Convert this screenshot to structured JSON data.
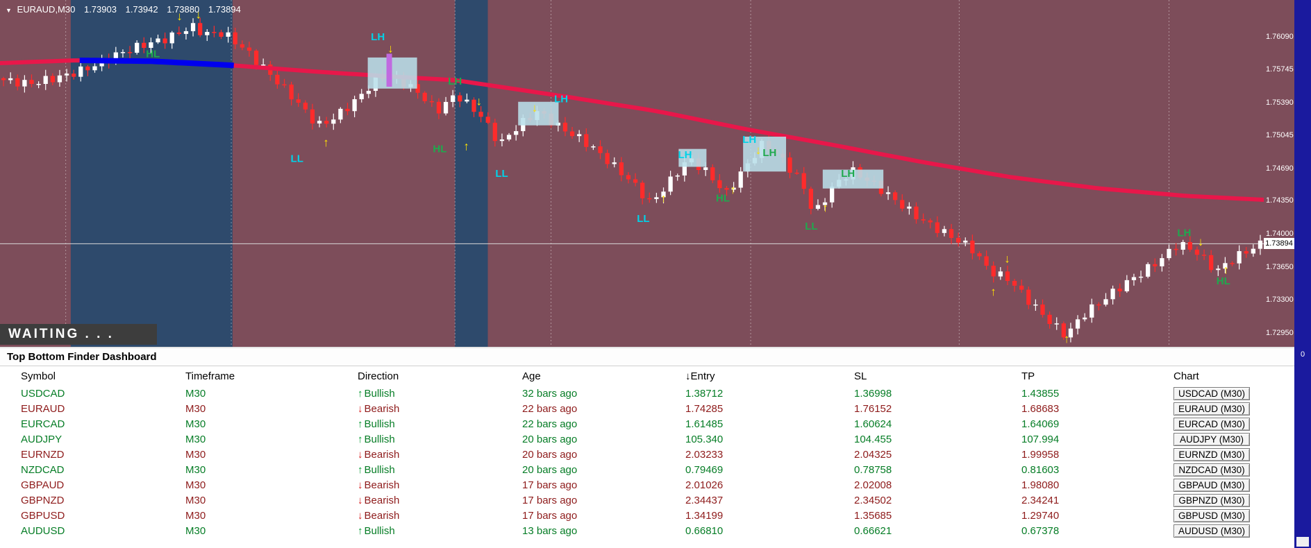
{
  "chart_data": {
    "type": "candlestick",
    "symbol": "EURAUD",
    "timeframe": "M30",
    "ohlc_header": {
      "symbol_period": "EURAUD,M30",
      "open": "1.73903",
      "high": "1.73942",
      "low": "1.73880",
      "close": "1.73894"
    },
    "waiting_text": "WAITING . . .",
    "ylim": [
      1.728,
      1.7648
    ],
    "axis_labels": [
      "1.76090",
      "1.75745",
      "1.75390",
      "1.75045",
      "1.74690",
      "1.74350",
      "1.74000",
      "1.73650",
      "1.73300",
      "1.72950"
    ],
    "current_price": "1.73894",
    "candle_count": 180,
    "price_path": [
      [
        0,
        1.7563
      ],
      [
        0.02,
        1.7559
      ],
      [
        0.05,
        1.7568
      ],
      [
        0.07,
        1.7577
      ],
      [
        0.09,
        1.759
      ],
      [
        0.11,
        1.76
      ],
      [
        0.13,
        1.7607
      ],
      [
        0.15,
        1.762
      ],
      [
        0.16,
        1.7612
      ],
      [
        0.175,
        1.7613
      ],
      [
        0.19,
        1.7598
      ],
      [
        0.21,
        1.7572
      ],
      [
        0.23,
        1.7545
      ],
      [
        0.25,
        1.7515
      ],
      [
        0.26,
        1.752
      ],
      [
        0.28,
        1.7541
      ],
      [
        0.3,
        1.7568
      ],
      [
        0.315,
        1.7563
      ],
      [
        0.33,
        1.755
      ],
      [
        0.345,
        1.753
      ],
      [
        0.36,
        1.7548
      ],
      [
        0.38,
        1.7525
      ],
      [
        0.395,
        1.7495
      ],
      [
        0.41,
        1.7515
      ],
      [
        0.425,
        1.753
      ],
      [
        0.44,
        1.7515
      ],
      [
        0.46,
        1.75
      ],
      [
        0.47,
        1.749
      ],
      [
        0.5,
        1.7455
      ],
      [
        0.515,
        1.7432
      ],
      [
        0.53,
        1.7455
      ],
      [
        0.545,
        1.748
      ],
      [
        0.56,
        1.7465
      ],
      [
        0.575,
        1.7442
      ],
      [
        0.59,
        1.747
      ],
      [
        0.605,
        1.7497
      ],
      [
        0.62,
        1.7478
      ],
      [
        0.635,
        1.7455
      ],
      [
        0.645,
        1.742
      ],
      [
        0.66,
        1.745
      ],
      [
        0.675,
        1.7467
      ],
      [
        0.69,
        1.7455
      ],
      [
        0.71,
        1.7435
      ],
      [
        0.73,
        1.7415
      ],
      [
        0.75,
        1.74
      ],
      [
        0.77,
        1.7385
      ],
      [
        0.785,
        1.736
      ],
      [
        0.8,
        1.7352
      ],
      [
        0.815,
        1.733
      ],
      [
        0.83,
        1.731
      ],
      [
        0.845,
        1.7292
      ],
      [
        0.86,
        1.7315
      ],
      [
        0.875,
        1.733
      ],
      [
        0.89,
        1.7345
      ],
      [
        0.905,
        1.7358
      ],
      [
        0.92,
        1.7372
      ],
      [
        0.935,
        1.739
      ],
      [
        0.95,
        1.738
      ],
      [
        0.965,
        1.736
      ],
      [
        0.98,
        1.7375
      ],
      [
        1,
        1.7389
      ]
    ],
    "ma_path": [
      [
        0,
        1.7581
      ],
      [
        0.06,
        1.7584
      ],
      [
        0.12,
        1.7583
      ],
      [
        0.18,
        1.7579
      ],
      [
        0.25,
        1.7572
      ],
      [
        0.32,
        1.7566
      ],
      [
        0.36,
        1.7563
      ],
      [
        0.45,
        1.7545
      ],
      [
        0.52,
        1.753
      ],
      [
        0.59,
        1.7511
      ],
      [
        0.66,
        1.7494
      ],
      [
        0.73,
        1.7476
      ],
      [
        0.8,
        1.746
      ],
      [
        0.87,
        1.7448
      ],
      [
        0.94,
        1.744
      ],
      [
        1,
        1.7436
      ]
    ],
    "ma_blue_segment": [
      0.063,
      0.185
    ],
    "bands": [
      [
        0.056,
        0.184
      ],
      [
        0.36,
        0.386
      ]
    ],
    "gridlines": [
      0.052,
      0.183,
      0.36,
      0.436,
      0.594,
      0.759,
      0.925
    ],
    "boxes": [
      {
        "f1": 0.291,
        "f2": 0.33,
        "p1": 1.7554,
        "p2": 1.7587
      },
      {
        "f1": 0.41,
        "f2": 0.442,
        "p1": 1.7515,
        "p2": 1.754
      },
      {
        "f1": 0.537,
        "f2": 0.559,
        "p1": 1.7471,
        "p2": 1.749
      },
      {
        "f1": 0.588,
        "f2": 0.622,
        "p1": 1.7466,
        "p2": 1.7503
      },
      {
        "f1": 0.651,
        "f2": 0.699,
        "p1": 1.7448,
        "p2": 1.7468
      }
    ],
    "violet_candle": {
      "f": 0.308,
      "p1": 1.7556,
      "p2": 1.7591
    },
    "labels": [
      {
        "f": 0.121,
        "p": 1.7591,
        "t": "HL",
        "c": "green"
      },
      {
        "f": 0.299,
        "p": 1.7609,
        "t": "LH",
        "c": "cyan"
      },
      {
        "f": 0.235,
        "p": 1.748,
        "t": "LL",
        "c": "cyan"
      },
      {
        "f": 0.348,
        "p": 1.749,
        "t": "HL",
        "c": "green"
      },
      {
        "f": 0.36,
        "p": 1.7562,
        "t": "LH",
        "c": "green"
      },
      {
        "f": 0.397,
        "p": 1.7464,
        "t": "LL",
        "c": "cyan"
      },
      {
        "f": 0.444,
        "p": 1.7543,
        "t": "LH",
        "c": "cyan"
      },
      {
        "f": 0.509,
        "p": 1.7416,
        "t": "LL",
        "c": "cyan"
      },
      {
        "f": 0.542,
        "p": 1.7484,
        "t": "LH",
        "c": "cyan"
      },
      {
        "f": 0.572,
        "p": 1.7438,
        "t": "HL",
        "c": "green"
      },
      {
        "f": 0.593,
        "p": 1.75,
        "t": "LH",
        "c": "cyan"
      },
      {
        "f": 0.609,
        "p": 1.7486,
        "t": "LH",
        "c": "green"
      },
      {
        "f": 0.642,
        "p": 1.7408,
        "t": "LL",
        "c": "green"
      },
      {
        "f": 0.671,
        "p": 1.7464,
        "t": "LH",
        "c": "green"
      },
      {
        "f": 0.937,
        "p": 1.7401,
        "t": "LH",
        "c": "green"
      },
      {
        "f": 0.968,
        "p": 1.735,
        "t": "HL",
        "c": "green"
      }
    ],
    "arrows": [
      {
        "f": 0.142,
        "p": 1.7631,
        "d": "down"
      },
      {
        "f": 0.157,
        "p": 1.7633,
        "d": "down"
      },
      {
        "f": 0.258,
        "p": 1.7497,
        "d": "up"
      },
      {
        "f": 0.309,
        "p": 1.7597,
        "d": "down"
      },
      {
        "f": 0.369,
        "p": 1.7493,
        "d": "up"
      },
      {
        "f": 0.379,
        "p": 1.7541,
        "d": "down"
      },
      {
        "f": 0.423,
        "p": 1.7534,
        "d": "down"
      },
      {
        "f": 0.525,
        "p": 1.7438,
        "d": "up"
      },
      {
        "f": 0.58,
        "p": 1.7447,
        "d": "up"
      },
      {
        "f": 0.6,
        "p": 1.7489,
        "d": "down"
      },
      {
        "f": 0.653,
        "p": 1.7428,
        "d": "up"
      },
      {
        "f": 0.786,
        "p": 1.7339,
        "d": "up"
      },
      {
        "f": 0.797,
        "p": 1.7374,
        "d": "down"
      },
      {
        "f": 0.844,
        "p": 1.7289,
        "d": "up"
      },
      {
        "f": 0.95,
        "p": 1.7392,
        "d": "down"
      },
      {
        "f": 0.97,
        "p": 1.7362,
        "d": "up"
      }
    ],
    "colors": {
      "background": "#7d4d5a",
      "band": "#2e4a6c",
      "bull": "#ffffff",
      "bear": "#ff2b2b",
      "ma": "#e8174a",
      "ma_highlight": "#0000ee",
      "box": "#b9dfe9",
      "cyan": "#00d2e8",
      "green": "#1fa94e",
      "arrow": "#ffe400",
      "violet": "#c06ae0",
      "grid": "rgba(255,255,255,0.4)",
      "bid_line": "#d9d9d9",
      "scrollbar": "#1a1a9e"
    }
  },
  "right_strip": {
    "top_label": "0"
  },
  "dashboard": {
    "title": "Top Bottom Finder Dashboard",
    "columns": [
      "Symbol",
      "Timeframe",
      "Direction",
      "Age",
      "↓Entry",
      "SL",
      "TP",
      "Chart"
    ],
    "rows": [
      {
        "symbol": "USDCAD",
        "timeframe": "M30",
        "direction": "Bullish",
        "age": "32 bars ago",
        "entry": "1.38712",
        "sl": "1.36998",
        "tp": "1.43855",
        "chart": "USDCAD (M30)"
      },
      {
        "symbol": "EURAUD",
        "timeframe": "M30",
        "direction": "Bearish",
        "age": "22 bars ago",
        "entry": "1.74285",
        "sl": "1.76152",
        "tp": "1.68683",
        "chart": "EURAUD (M30)"
      },
      {
        "symbol": "EURCAD",
        "timeframe": "M30",
        "direction": "Bullish",
        "age": "22 bars ago",
        "entry": "1.61485",
        "sl": "1.60624",
        "tp": "1.64069",
        "chart": "EURCAD (M30)"
      },
      {
        "symbol": "AUDJPY",
        "timeframe": "M30",
        "direction": "Bullish",
        "age": "20 bars ago",
        "entry": "105.340",
        "sl": "104.455",
        "tp": "107.994",
        "chart": "AUDJPY (M30)"
      },
      {
        "symbol": "EURNZD",
        "timeframe": "M30",
        "direction": "Bearish",
        "age": "20 bars ago",
        "entry": "2.03233",
        "sl": "2.04325",
        "tp": "1.99958",
        "chart": "EURNZD (M30)"
      },
      {
        "symbol": "NZDCAD",
        "timeframe": "M30",
        "direction": "Bullish",
        "age": "20 bars ago",
        "entry": "0.79469",
        "sl": "0.78758",
        "tp": "0.81603",
        "chart": "NZDCAD (M30)"
      },
      {
        "symbol": "GBPAUD",
        "timeframe": "M30",
        "direction": "Bearish",
        "age": "17 bars ago",
        "entry": "2.01026",
        "sl": "2.02008",
        "tp": "1.98080",
        "chart": "GBPAUD (M30)"
      },
      {
        "symbol": "GBPNZD",
        "timeframe": "M30",
        "direction": "Bearish",
        "age": "17 bars ago",
        "entry": "2.34437",
        "sl": "2.34502",
        "tp": "2.34241",
        "chart": "GBPNZD (M30)"
      },
      {
        "symbol": "GBPUSD",
        "timeframe": "M30",
        "direction": "Bearish",
        "age": "17 bars ago",
        "entry": "1.34199",
        "sl": "1.35685",
        "tp": "1.29740",
        "chart": "GBPUSD (M30)"
      },
      {
        "symbol": "AUDUSD",
        "timeframe": "M30",
        "direction": "Bullish",
        "age": "13 bars ago",
        "entry": "0.66810",
        "sl": "0.66621",
        "tp": "0.67378",
        "chart": "AUDUSD (M30)"
      }
    ]
  }
}
